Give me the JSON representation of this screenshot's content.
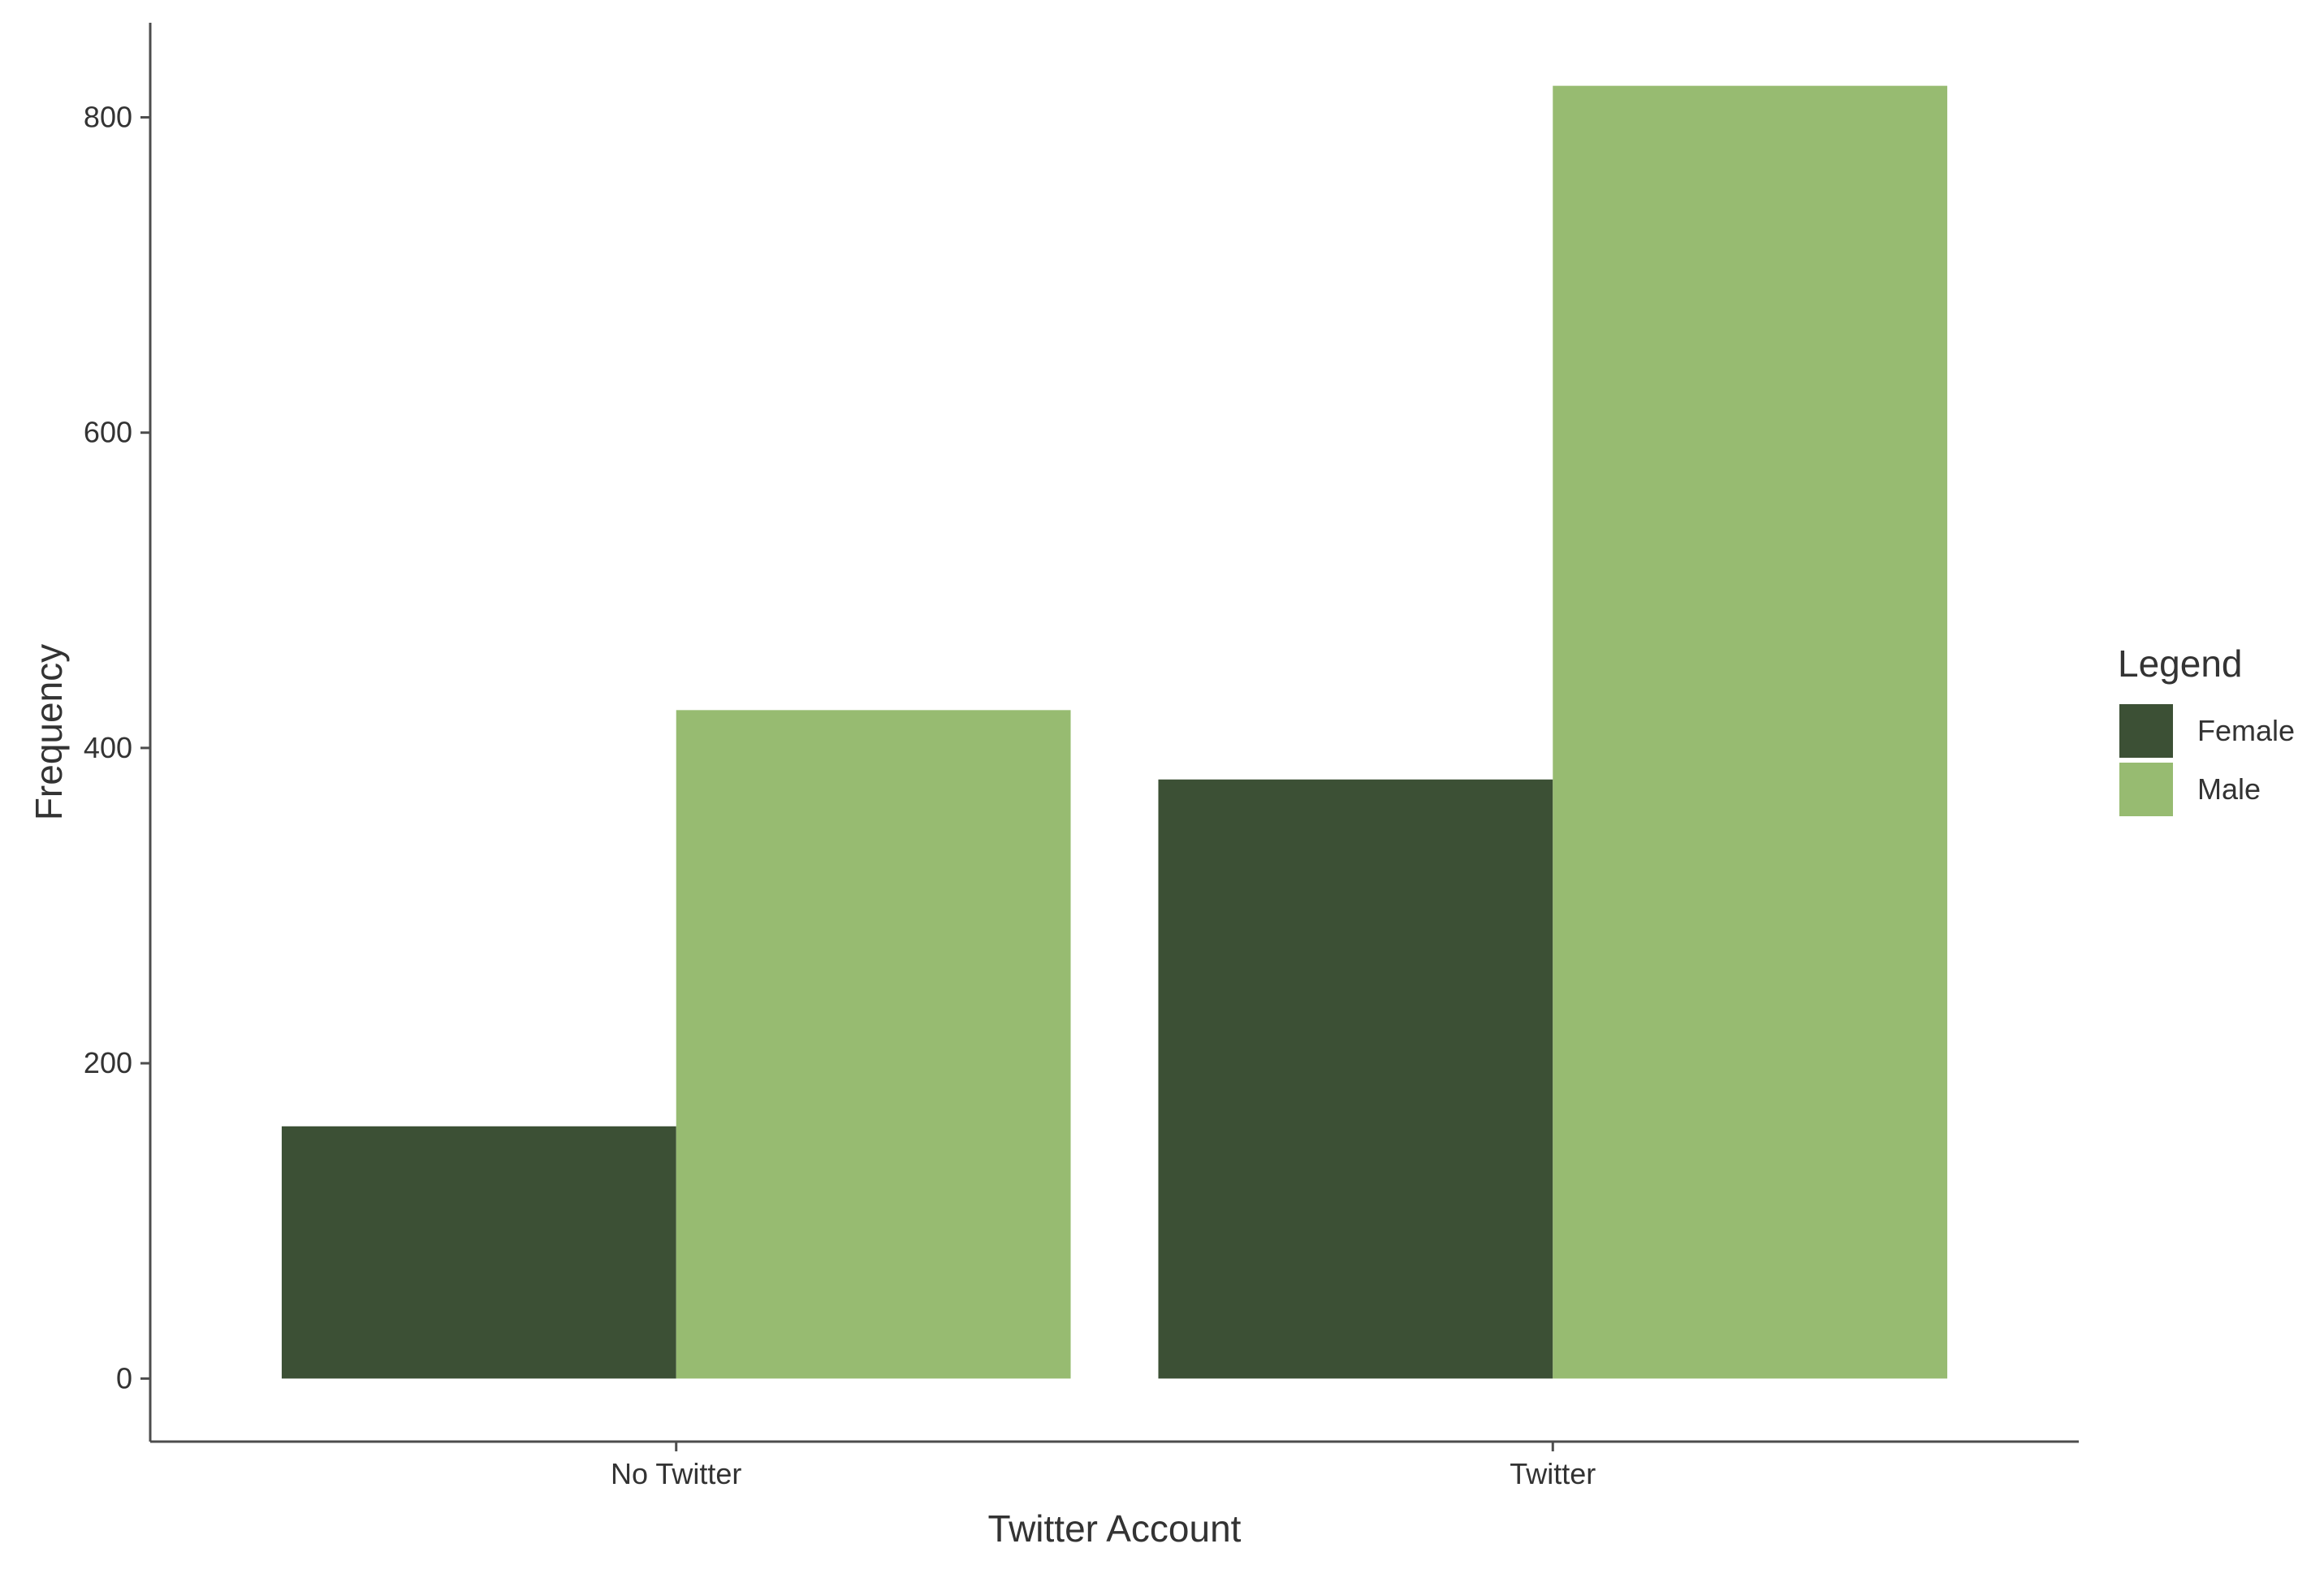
{
  "chart_data": {
    "type": "bar",
    "categories": [
      "No Twitter",
      "Twitter"
    ],
    "series": [
      {
        "name": "Female",
        "values": [
          160,
          380
        ],
        "color": "#3c5035"
      },
      {
        "name": "Male",
        "values": [
          424,
          820
        ],
        "color": "#97bb71"
      }
    ],
    "title": "",
    "xlabel": "Twitter Account",
    "ylabel": "Frequency",
    "ylim": [
      -40,
      860
    ],
    "yticks": [
      0,
      200,
      400,
      600,
      800
    ],
    "ytick_labels": [
      "0",
      "200",
      "400",
      "600",
      "800"
    ],
    "grid": false,
    "legend": {
      "title": "Legend",
      "placement": "right",
      "entries": [
        "Female",
        "Male"
      ]
    }
  }
}
